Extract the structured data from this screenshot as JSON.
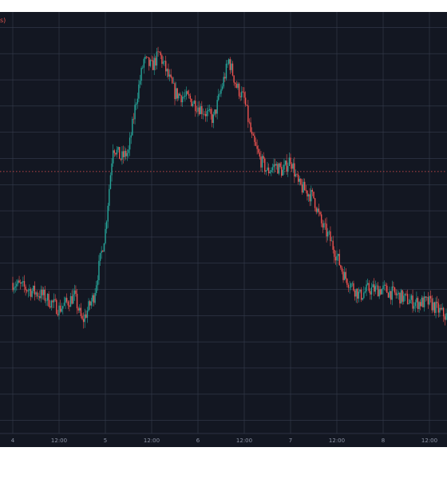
{
  "header": {
    "corner_text": "s)"
  },
  "chart_data": {
    "type": "candlestick",
    "title": "",
    "xlabel": "",
    "ylabel": "",
    "x_ticks": [
      "4",
      "12:00",
      "5",
      "12:00",
      "6",
      "12:00",
      "7",
      "12:00",
      "8",
      "12:00"
    ],
    "grid": true,
    "colors": {
      "up": "#26a69a",
      "down": "#ef5350",
      "background": "#131722",
      "grid": "#363c4e",
      "ref_line": "#ef5350"
    },
    "ref_value": 40,
    "trend": [
      [
        0,
        23
      ],
      [
        4,
        22
      ],
      [
        8,
        21
      ],
      [
        12,
        19
      ],
      [
        16,
        21
      ],
      [
        18,
        17
      ],
      [
        21,
        21
      ],
      [
        24,
        31
      ],
      [
        26,
        44
      ],
      [
        28,
        42
      ],
      [
        30,
        43
      ],
      [
        32,
        51
      ],
      [
        34,
        57
      ],
      [
        36,
        56
      ],
      [
        38,
        58
      ],
      [
        40,
        55
      ],
      [
        42,
        52
      ],
      [
        46,
        51
      ],
      [
        48,
        50
      ],
      [
        52,
        48
      ],
      [
        56,
        57
      ],
      [
        58,
        53
      ],
      [
        60,
        51
      ],
      [
        62,
        45
      ],
      [
        64,
        42
      ],
      [
        66,
        40
      ],
      [
        68,
        41
      ],
      [
        70,
        40
      ],
      [
        72,
        42
      ],
      [
        74,
        38
      ],
      [
        76,
        37
      ],
      [
        78,
        36
      ],
      [
        80,
        32
      ],
      [
        82,
        30
      ],
      [
        86,
        24
      ],
      [
        90,
        21
      ],
      [
        92,
        22
      ],
      [
        96,
        22
      ],
      [
        100,
        21
      ],
      [
        104,
        20
      ],
      [
        108,
        20
      ],
      [
        112,
        18
      ],
      [
        116,
        17
      ],
      [
        120,
        16
      ],
      [
        122,
        15
      ],
      [
        126,
        15
      ],
      [
        128,
        17
      ],
      [
        130,
        16
      ],
      [
        132,
        18
      ],
      [
        134,
        22
      ],
      [
        136,
        18
      ],
      [
        137,
        17
      ]
    ]
  }
}
